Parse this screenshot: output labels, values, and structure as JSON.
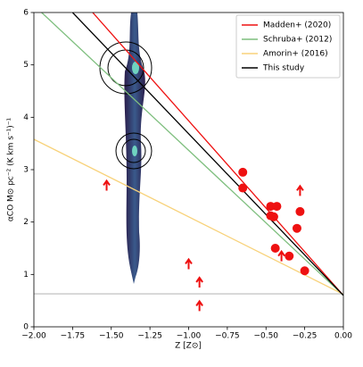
{
  "chart_data": {
    "type": "line",
    "xlabel": "Z [Z⊙]",
    "ylabel": "αCO M⊙ pc⁻² (K km s⁻¹)⁻¹",
    "xlim": [
      -2,
      0
    ],
    "ylim": [
      0,
      6
    ],
    "xticks": [
      {
        "value": -2,
        "label": "−2.00"
      },
      {
        "value": -1.75,
        "label": "−1.75"
      },
      {
        "value": -1.5,
        "label": "−1.50"
      },
      {
        "value": -1.25,
        "label": "−1.25"
      },
      {
        "value": -1,
        "label": "−1.00"
      },
      {
        "value": -0.75,
        "label": "−0.75"
      },
      {
        "value": -0.5,
        "label": "−0.50"
      },
      {
        "value": -0.25,
        "label": "−0.25"
      },
      {
        "value": 0,
        "label": "0.00"
      }
    ],
    "yticks": [
      0,
      1,
      2,
      3,
      4,
      5,
      6
    ],
    "legend": "upper right",
    "series": [
      {
        "name": "Madden+ (2020)",
        "color": "#ee1111",
        "x": [
          -1.62,
          0
        ],
        "values": [
          6,
          0.6
        ]
      },
      {
        "name": "Schruba+ (2012)",
        "color": "#7fbf7f",
        "x": [
          -1.95,
          0
        ],
        "values": [
          6,
          0.6
        ]
      },
      {
        "name": "Amorin+ (2016)",
        "color": "#f8d27a",
        "x": [
          -2,
          0
        ],
        "values": [
          3.58,
          0.62
        ]
      },
      {
        "name": "This study",
        "color": "#000000",
        "x": [
          -1.75,
          0
        ],
        "values": [
          6,
          0.6
        ]
      }
    ],
    "reference_y": 0.63,
    "points": {
      "color": "#ee1111",
      "x": [
        -0.65,
        -0.65,
        -0.47,
        -0.43,
        -0.47,
        -0.45,
        -0.3,
        -0.28,
        -0.44,
        -0.35,
        -0.25
      ],
      "values": [
        2.95,
        2.65,
        2.3,
        2.3,
        2.12,
        2.1,
        1.88,
        2.2,
        1.5,
        1.35,
        1.07
      ]
    },
    "lower_limits": {
      "color": "#ee1111",
      "x": [
        -1.53,
        -0.28,
        -0.4,
        -1.0,
        -0.93,
        -0.93
      ],
      "values": [
        2.6,
        2.5,
        1.25,
        1.1,
        0.75,
        0.3
      ]
    }
  }
}
